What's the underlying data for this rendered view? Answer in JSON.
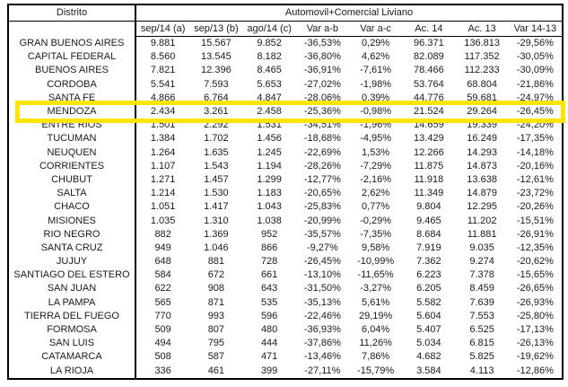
{
  "table": {
    "corner_header": "Distrito",
    "group_header": "Automovil+Comercial Liviano",
    "columns": [
      "sep/14 (a)",
      "sep/13 (b)",
      "ago/14 (c)",
      "Var a-b",
      "Var a-c",
      "Ac. 14",
      "Ac. 13",
      "Var 14-13"
    ],
    "highlight": {
      "district": "MENDOZA",
      "color": "#FFE400"
    },
    "rows": [
      {
        "district": "GRAN BUENOS AIRES",
        "values": [
          "9.881",
          "15.567",
          "9.852",
          "-36,53%",
          "0,29%",
          "96.371",
          "136.813",
          "-29,56%"
        ]
      },
      {
        "district": "CAPITAL FEDERAL",
        "values": [
          "8.560",
          "13.545",
          "8.182",
          "-36,80%",
          "4,62%",
          "82.089",
          "117.352",
          "-30,05%"
        ]
      },
      {
        "district": "BUENOS AIRES",
        "values": [
          "7.821",
          "12.396",
          "8.465",
          "-36,91%",
          "-7,61%",
          "78.466",
          "112.233",
          "-30,09%"
        ]
      },
      {
        "district": "CORDOBA",
        "values": [
          "5.541",
          "7.593",
          "5.653",
          "-27,02%",
          "-1,98%",
          "53.764",
          "68.804",
          "-21,86%"
        ]
      },
      {
        "district": "SANTA FE",
        "values": [
          "4.866",
          "6.764",
          "4.847",
          "-28,06%",
          "0,39%",
          "44.776",
          "59.681",
          "-24,97%"
        ]
      },
      {
        "district": "MENDOZA",
        "values": [
          "2.434",
          "3.261",
          "2.458",
          "-25,36%",
          "-0,98%",
          "21.524",
          "29.264",
          "-26,45%"
        ]
      },
      {
        "district": "ENTRE RIOS",
        "values": [
          "1.501",
          "2.292",
          "1.531",
          "-34,51%",
          "-1,96%",
          "14.659",
          "19.339",
          "-24,20%"
        ]
      },
      {
        "district": "TUCUMAN",
        "values": [
          "1.384",
          "1.702",
          "1.456",
          "-18,68%",
          "-4,95%",
          "13.429",
          "16.249",
          "-17,35%"
        ]
      },
      {
        "district": "NEUQUEN",
        "values": [
          "1.264",
          "1.635",
          "1.245",
          "-22,69%",
          "1,53%",
          "12.266",
          "14.293",
          "-14,18%"
        ]
      },
      {
        "district": "CORRIENTES",
        "values": [
          "1.107",
          "1.543",
          "1.194",
          "-28,26%",
          "-7,29%",
          "11.875",
          "14.873",
          "-20,16%"
        ]
      },
      {
        "district": "CHUBUT",
        "values": [
          "1.271",
          "1.457",
          "1.299",
          "-12,77%",
          "-2,16%",
          "11.918",
          "13.638",
          "-12,61%"
        ]
      },
      {
        "district": "SALTA",
        "values": [
          "1.214",
          "1.530",
          "1.183",
          "-20,65%",
          "2,62%",
          "11.349",
          "14.879",
          "-23,72%"
        ]
      },
      {
        "district": "CHACO",
        "values": [
          "1.051",
          "1.417",
          "1.043",
          "-25,83%",
          "0,77%",
          "9.804",
          "12.295",
          "-20,26%"
        ]
      },
      {
        "district": "MISIONES",
        "values": [
          "1.035",
          "1.310",
          "1.038",
          "-20,99%",
          "-0,29%",
          "9.465",
          "11.202",
          "-15,51%"
        ]
      },
      {
        "district": "RIO NEGRO",
        "values": [
          "882",
          "1.369",
          "952",
          "-35,57%",
          "-7,35%",
          "8.684",
          "11.881",
          "-26,91%"
        ]
      },
      {
        "district": "SANTA CRUZ",
        "values": [
          "949",
          "1.046",
          "866",
          "-9,27%",
          "9,58%",
          "7.919",
          "9.035",
          "-12,35%"
        ]
      },
      {
        "district": "JUJUY",
        "values": [
          "648",
          "881",
          "728",
          "-26,45%",
          "-10,99%",
          "7.362",
          "9.274",
          "-20,62%"
        ]
      },
      {
        "district": "SANTIAGO DEL ESTERO",
        "values": [
          "584",
          "672",
          "661",
          "-13,10%",
          "-11,65%",
          "6.223",
          "7.378",
          "-15,65%"
        ]
      },
      {
        "district": "SAN JUAN",
        "values": [
          "622",
          "908",
          "643",
          "-31,50%",
          "-3,27%",
          "6.205",
          "8.459",
          "-26,65%"
        ]
      },
      {
        "district": "LA PAMPA",
        "values": [
          "565",
          "871",
          "535",
          "-35,13%",
          "5,61%",
          "5.582",
          "7.639",
          "-26,93%"
        ]
      },
      {
        "district": "TIERRA DEL FUEGO",
        "values": [
          "770",
          "993",
          "596",
          "-22,46%",
          "29,19%",
          "5.604",
          "7.553",
          "-25,80%"
        ]
      },
      {
        "district": "FORMOSA",
        "values": [
          "509",
          "807",
          "480",
          "-36,93%",
          "6,04%",
          "5.407",
          "6.525",
          "-17,13%"
        ]
      },
      {
        "district": "SAN LUIS",
        "values": [
          "494",
          "795",
          "444",
          "-37,86%",
          "11,26%",
          "5.034",
          "6.815",
          "-26,13%"
        ]
      },
      {
        "district": "CATAMARCA",
        "values": [
          "508",
          "587",
          "471",
          "-13,46%",
          "7,86%",
          "4.682",
          "5.825",
          "-19,62%"
        ]
      },
      {
        "district": "LA RIOJA",
        "values": [
          "336",
          "461",
          "399",
          "-27,11%",
          "-15,79%",
          "3.584",
          "4.113",
          "-12,86%"
        ]
      }
    ]
  }
}
